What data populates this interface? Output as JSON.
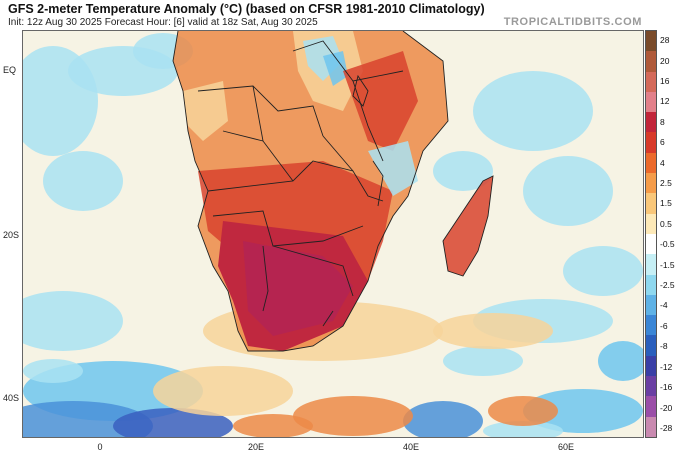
{
  "header": {
    "title": "GFS 2-meter Temperature Anomaly (°C) (based on CFSR 1981-2010 Climatology)",
    "subtitle": "Init: 12z Aug 30 2025   Forecast Hour: [6]   valid at 18z Sat, Aug 30 2025",
    "brand": "TROPICALTIDBITS.COM"
  },
  "axes": {
    "lat_labels": [
      "EQ",
      "20S",
      "40S"
    ],
    "lon_labels": [
      "0",
      "20E",
      "40E",
      "60E"
    ]
  },
  "colorbar": {
    "labels": [
      "28",
      "20",
      "16",
      "12",
      "8",
      "6",
      "4",
      "2.5",
      "1.5",
      "0.5",
      "-0.5",
      "-1.5",
      "-2.5",
      "-4",
      "-6",
      "-8",
      "-12",
      "-16",
      "-20",
      "-28"
    ],
    "colors": [
      "#7a4b2a",
      "#b05a3a",
      "#d46a5a",
      "#e2808a",
      "#c2253a",
      "#d83a2a",
      "#ec6a2c",
      "#f59c4a",
      "#f9c77a",
      "#fde9b8",
      "#ffffff",
      "#c6eff5",
      "#8fd8ef",
      "#5fb2e6",
      "#3b86d6",
      "#2a5fbd",
      "#3a3fa6",
      "#6a3fa3",
      "#9b4fa8",
      "#c98ab0"
    ]
  },
  "map": {
    "colors": {
      "ocean_base": "#f6f3e4",
      "warm_light": "#f7d49a",
      "warm_mid": "#ec8a48",
      "warm_strong": "#d8432e",
      "hot": "#c0283f",
      "hot_core": "#b52450",
      "cool_light": "#a9e2f2",
      "cool_mid": "#6fc6ee",
      "cool_strong": "#4a90d8",
      "cool_deep": "#3a5fbf",
      "border": "#222222"
    }
  }
}
